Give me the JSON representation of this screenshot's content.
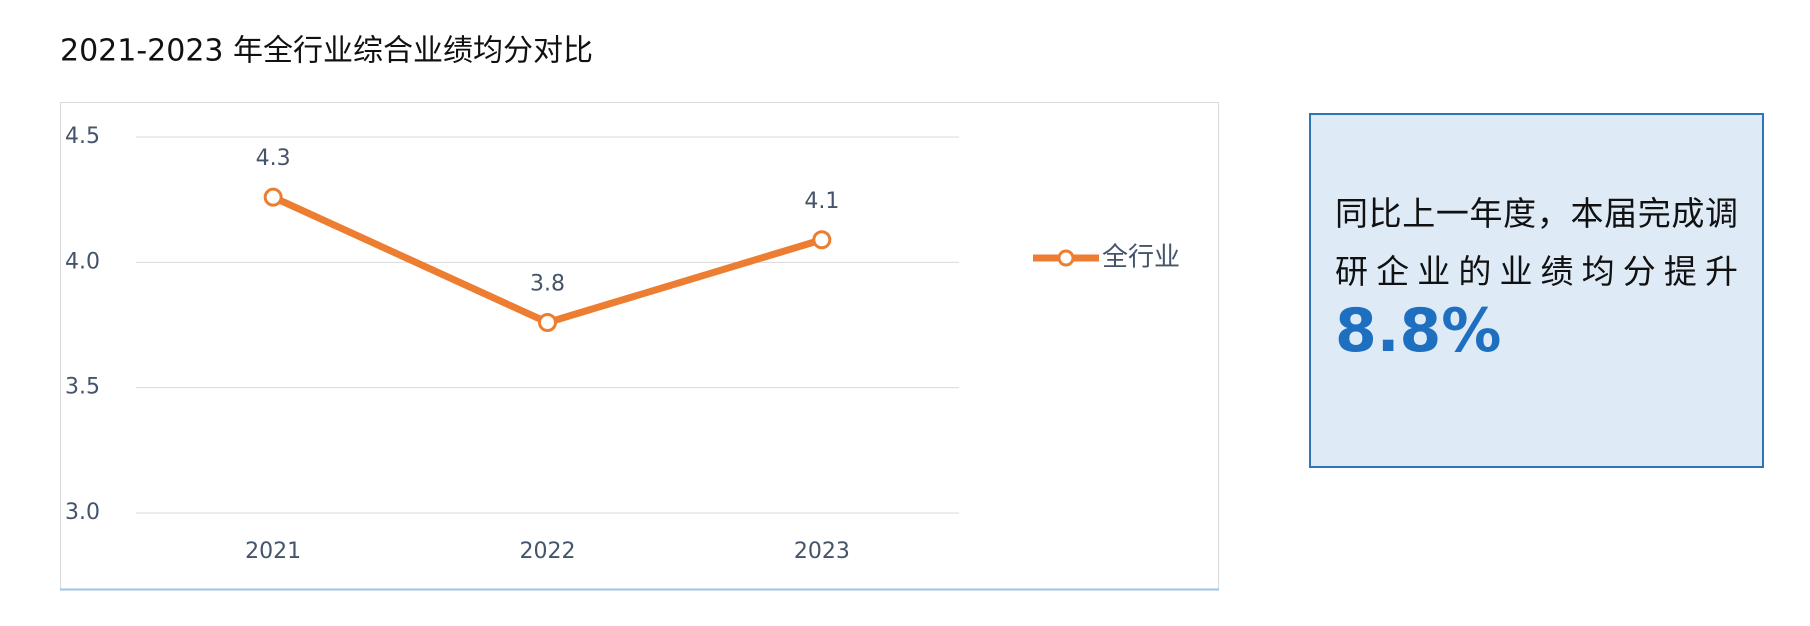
{
  "chart_data": {
    "type": "line",
    "title": "2021-2023 年全行业综合业绩均分对比",
    "categories": [
      "2021",
      "2022",
      "2023"
    ],
    "series": [
      {
        "name": "全行业",
        "color": "#ED7D31",
        "values": [
          4.26,
          3.76,
          4.09
        ],
        "value_labels": [
          "4.3",
          "3.8",
          "4.1"
        ]
      }
    ],
    "ylim": [
      3.0,
      4.5
    ],
    "yticks": [
      {
        "value": 3,
        "label": "3.0"
      },
      3.5,
      {
        "value": 4,
        "label": "4.0"
      },
      4.5
    ],
    "grid": true,
    "legend": "right"
  },
  "callout": {
    "text": "同比上一年度，本届完成调研企业的业绩均分提升",
    "highlight": "8.8%"
  }
}
